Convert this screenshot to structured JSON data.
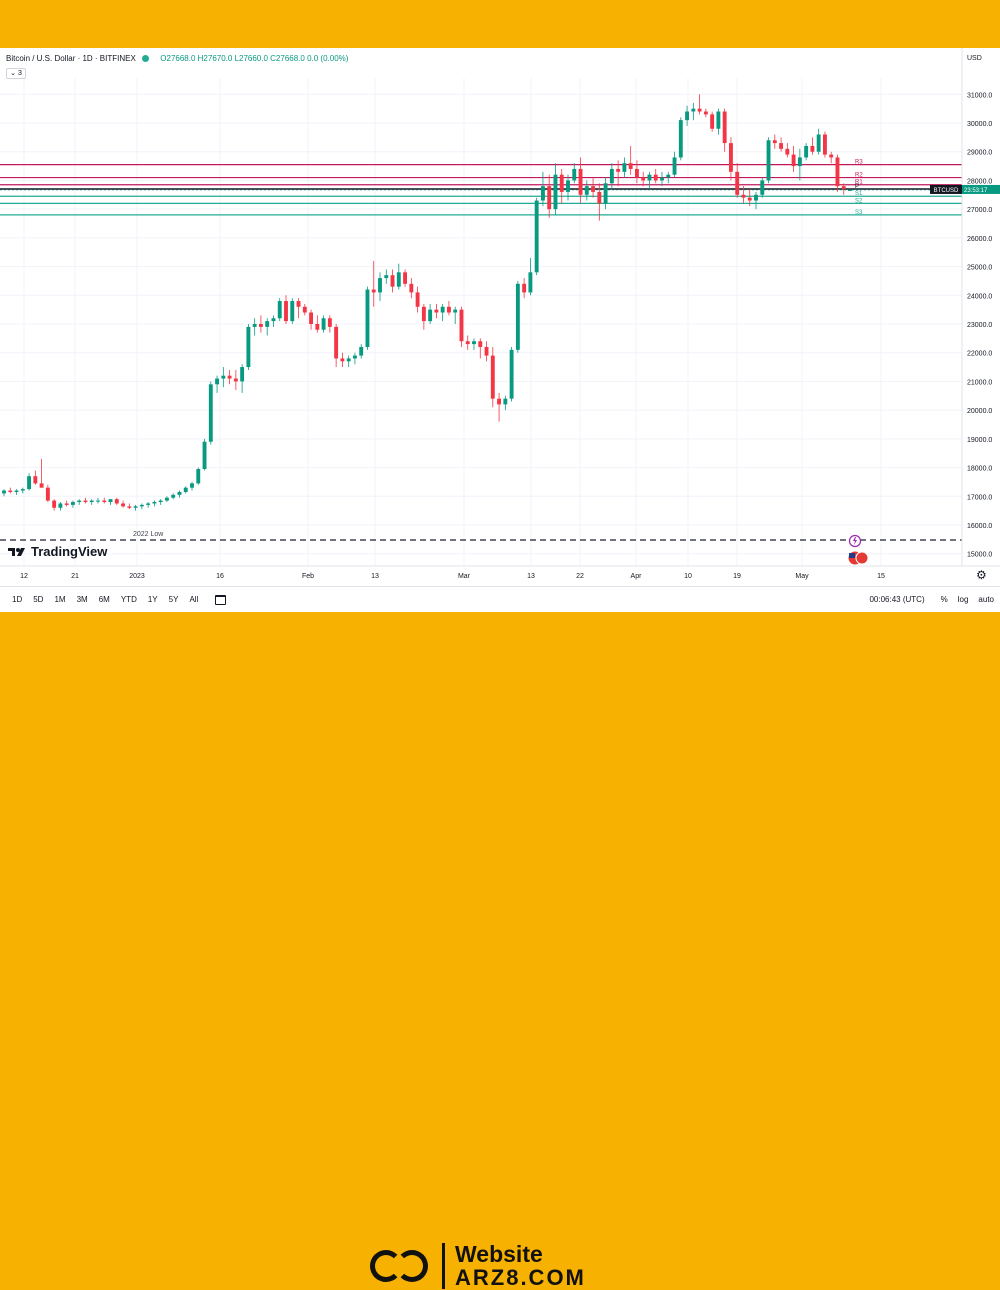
{
  "header": {
    "symbol": "Bitcoin / U.S. Dollar · 1D · BITFINEX",
    "ohlc": "O27668.0 H27670.0 L27660.0 C27668.0 0.0 (0.00%)",
    "indicator_count": "3"
  },
  "toolbar": {
    "timeframes": [
      "1D",
      "5D",
      "1M",
      "3M",
      "6M",
      "YTD",
      "1Y",
      "5Y",
      "All"
    ],
    "clock": "00:06:43 (UTC)",
    "percent": "%",
    "log": "log",
    "auto": "auto"
  },
  "branding": {
    "tradingview": "TradingView",
    "website": "Website",
    "domain": "ARZ8.COM"
  },
  "colors": {
    "up": "#089981",
    "down": "#f23645",
    "background_band": "#f7b100",
    "resistance": "#c2185b",
    "support": "#22ab94"
  },
  "chart_data": {
    "type": "candlestick",
    "currency_label": "USD",
    "y_range": [
      15000,
      31000
    ],
    "y_ticks": [
      15000,
      16000,
      17000,
      18000,
      19000,
      20000,
      21000,
      22000,
      23000,
      24000,
      25000,
      26000,
      27000,
      28000,
      29000,
      30000,
      31000
    ],
    "x_tick_labels": [
      "12",
      "21",
      "2023",
      "16",
      "Feb",
      "13",
      "Mar",
      "13",
      "22",
      "Apr",
      "10",
      "19",
      "May",
      "15"
    ],
    "last_price_label": "BTCUSD",
    "last_price": 27668,
    "countdown": "23:53:17",
    "pivot_lines": [
      {
        "label": "R3",
        "value": 28550
      },
      {
        "label": "R2",
        "value": 28100
      },
      {
        "label": "R1",
        "value": 27850
      },
      {
        "label": "P",
        "value": 27700
      },
      {
        "label": "S1",
        "value": 27450
      },
      {
        "label": "S2",
        "value": 27200
      },
      {
        "label": "S3",
        "value": 26800
      }
    ],
    "annotation": {
      "label": "2022 Low",
      "value": 15476
    },
    "candles": [
      [
        17100,
        17250,
        17000,
        17200
      ],
      [
        17200,
        17300,
        17100,
        17150
      ],
      [
        17150,
        17250,
        17050,
        17200
      ],
      [
        17200,
        17300,
        17100,
        17250
      ],
      [
        17250,
        17800,
        17200,
        17700
      ],
      [
        17700,
        17900,
        17400,
        17450
      ],
      [
        17450,
        18300,
        17300,
        17300
      ],
      [
        17300,
        17400,
        16800,
        16850
      ],
      [
        16850,
        16900,
        16500,
        16600
      ],
      [
        16600,
        16800,
        16500,
        16750
      ],
      [
        16750,
        16850,
        16650,
        16700
      ],
      [
        16700,
        16850,
        16600,
        16800
      ],
      [
        16800,
        16900,
        16700,
        16850
      ],
      [
        16850,
        16950,
        16750,
        16800
      ],
      [
        16800,
        16900,
        16700,
        16850
      ],
      [
        16850,
        16950,
        16750,
        16850
      ],
      [
        16850,
        16950,
        16750,
        16800
      ],
      [
        16800,
        16900,
        16700,
        16900
      ],
      [
        16900,
        16950,
        16700,
        16750
      ],
      [
        16750,
        16850,
        16600,
        16650
      ],
      [
        16650,
        16750,
        16550,
        16600
      ],
      [
        16600,
        16700,
        16500,
        16650
      ],
      [
        16650,
        16750,
        16550,
        16700
      ],
      [
        16700,
        16800,
        16600,
        16750
      ],
      [
        16750,
        16850,
        16650,
        16800
      ],
      [
        16800,
        16900,
        16700,
        16850
      ],
      [
        16850,
        17000,
        16800,
        16950
      ],
      [
        16950,
        17100,
        16900,
        17050
      ],
      [
        17050,
        17200,
        16950,
        17150
      ],
      [
        17150,
        17350,
        17100,
        17300
      ],
      [
        17300,
        17500,
        17200,
        17450
      ],
      [
        17450,
        18000,
        17400,
        17950
      ],
      [
        17950,
        19000,
        17900,
        18900
      ],
      [
        18900,
        21000,
        18800,
        20900
      ],
      [
        20900,
        21200,
        20600,
        21100
      ],
      [
        21100,
        21500,
        20800,
        21200
      ],
      [
        21200,
        21400,
        20900,
        21100
      ],
      [
        21100,
        21400,
        20700,
        21000
      ],
      [
        21000,
        21600,
        20600,
        21500
      ],
      [
        21500,
        23000,
        21400,
        22900
      ],
      [
        22900,
        23200,
        22600,
        23000
      ],
      [
        23000,
        23300,
        22700,
        22900
      ],
      [
        22900,
        23200,
        22600,
        23100
      ],
      [
        23100,
        23300,
        22900,
        23200
      ],
      [
        23200,
        23900,
        23100,
        23800
      ],
      [
        23800,
        24000,
        23000,
        23100
      ],
      [
        23100,
        23900,
        23000,
        23800
      ],
      [
        23800,
        23900,
        23200,
        23600
      ],
      [
        23600,
        23700,
        23300,
        23400
      ],
      [
        23400,
        23500,
        22800,
        23000
      ],
      [
        23000,
        23300,
        22700,
        22800
      ],
      [
        22800,
        23300,
        22700,
        23200
      ],
      [
        23200,
        23300,
        22700,
        22900
      ],
      [
        22900,
        23000,
        21500,
        21800
      ],
      [
        21800,
        22000,
        21500,
        21700
      ],
      [
        21700,
        21900,
        21500,
        21800
      ],
      [
        21800,
        22000,
        21600,
        21900
      ],
      [
        21900,
        22300,
        21800,
        22200
      ],
      [
        22200,
        24300,
        22100,
        24200
      ],
      [
        24200,
        25200,
        23600,
        24100
      ],
      [
        24100,
        24800,
        23800,
        24600
      ],
      [
        24600,
        24900,
        24400,
        24700
      ],
      [
        24700,
        24900,
        24100,
        24300
      ],
      [
        24300,
        25100,
        24200,
        24800
      ],
      [
        24800,
        24900,
        24300,
        24400
      ],
      [
        24400,
        24600,
        23900,
        24100
      ],
      [
        24100,
        24300,
        23400,
        23600
      ],
      [
        23600,
        23700,
        22800,
        23100
      ],
      [
        23100,
        23700,
        23000,
        23500
      ],
      [
        23500,
        23700,
        23200,
        23400
      ],
      [
        23400,
        23700,
        23100,
        23600
      ],
      [
        23600,
        23800,
        23300,
        23400
      ],
      [
        23400,
        23600,
        23000,
        23500
      ],
      [
        23500,
        23600,
        22200,
        22400
      ],
      [
        22400,
        22600,
        22100,
        22300
      ],
      [
        22300,
        22500,
        22100,
        22400
      ],
      [
        22400,
        22500,
        21800,
        22200
      ],
      [
        22200,
        22400,
        21700,
        21900
      ],
      [
        21900,
        22200,
        20100,
        20400
      ],
      [
        20400,
        20600,
        19600,
        20200
      ],
      [
        20200,
        20500,
        20000,
        20400
      ],
      [
        20400,
        22200,
        20300,
        22100
      ],
      [
        22100,
        24500,
        22000,
        24400
      ],
      [
        24400,
        24600,
        23900,
        24100
      ],
      [
        24100,
        25300,
        24000,
        24800
      ],
      [
        24800,
        27400,
        24700,
        27300
      ],
      [
        27300,
        28300,
        27100,
        27800
      ],
      [
        27800,
        28200,
        26700,
        27000
      ],
      [
        27000,
        28600,
        26800,
        28200
      ],
      [
        28200,
        28400,
        27200,
        27600
      ],
      [
        27600,
        28200,
        27300,
        28000
      ],
      [
        28000,
        28600,
        27900,
        28400
      ],
      [
        28400,
        28800,
        27200,
        27500
      ],
      [
        27500,
        28000,
        27300,
        27800
      ],
      [
        27800,
        28100,
        27400,
        27600
      ],
      [
        27600,
        27900,
        26600,
        27200
      ],
      [
        27200,
        28100,
        27000,
        27900
      ],
      [
        27900,
        28600,
        27700,
        28400
      ],
      [
        28400,
        28700,
        27800,
        28300
      ],
      [
        28300,
        28800,
        28100,
        28600
      ],
      [
        28600,
        29200,
        28200,
        28400
      ],
      [
        28400,
        28700,
        27900,
        28100
      ],
      [
        28100,
        28300,
        27800,
        28000
      ],
      [
        28000,
        28300,
        27700,
        28200
      ],
      [
        28200,
        28400,
        27900,
        28000
      ],
      [
        28000,
        28300,
        27800,
        28100
      ],
      [
        28100,
        28300,
        27900,
        28200
      ],
      [
        28200,
        29000,
        28100,
        28800
      ],
      [
        28800,
        30200,
        28700,
        30100
      ],
      [
        30100,
        30600,
        29900,
        30400
      ],
      [
        30400,
        30700,
        30100,
        30500
      ],
      [
        30500,
        31000,
        30300,
        30400
      ],
      [
        30400,
        30500,
        30200,
        30300
      ],
      [
        30300,
        30400,
        29700,
        29800
      ],
      [
        29800,
        30500,
        29600,
        30400
      ],
      [
        30400,
        30500,
        29000,
        29300
      ],
      [
        29300,
        29500,
        28000,
        28300
      ],
      [
        28300,
        28600,
        27400,
        27500
      ],
      [
        27500,
        27800,
        27200,
        27400
      ],
      [
        27400,
        27700,
        27100,
        27300
      ],
      [
        27300,
        27600,
        27000,
        27500
      ],
      [
        27500,
        28100,
        27400,
        28000
      ],
      [
        28000,
        29500,
        27900,
        29400
      ],
      [
        29400,
        29600,
        29100,
        29300
      ],
      [
        29300,
        29500,
        29000,
        29100
      ],
      [
        29100,
        29300,
        28800,
        28900
      ],
      [
        28900,
        29200,
        28300,
        28500
      ],
      [
        28500,
        29100,
        28000,
        28800
      ],
      [
        28800,
        29300,
        28700,
        29200
      ],
      [
        29200,
        29500,
        28900,
        29000
      ],
      [
        29000,
        29800,
        28900,
        29600
      ],
      [
        29600,
        29700,
        28800,
        28900
      ],
      [
        28900,
        29000,
        28600,
        28800
      ],
      [
        28800,
        28900,
        27600,
        27800
      ],
      [
        27800,
        27900,
        27500,
        27700
      ],
      [
        27668,
        27670,
        27660,
        27668
      ]
    ]
  }
}
